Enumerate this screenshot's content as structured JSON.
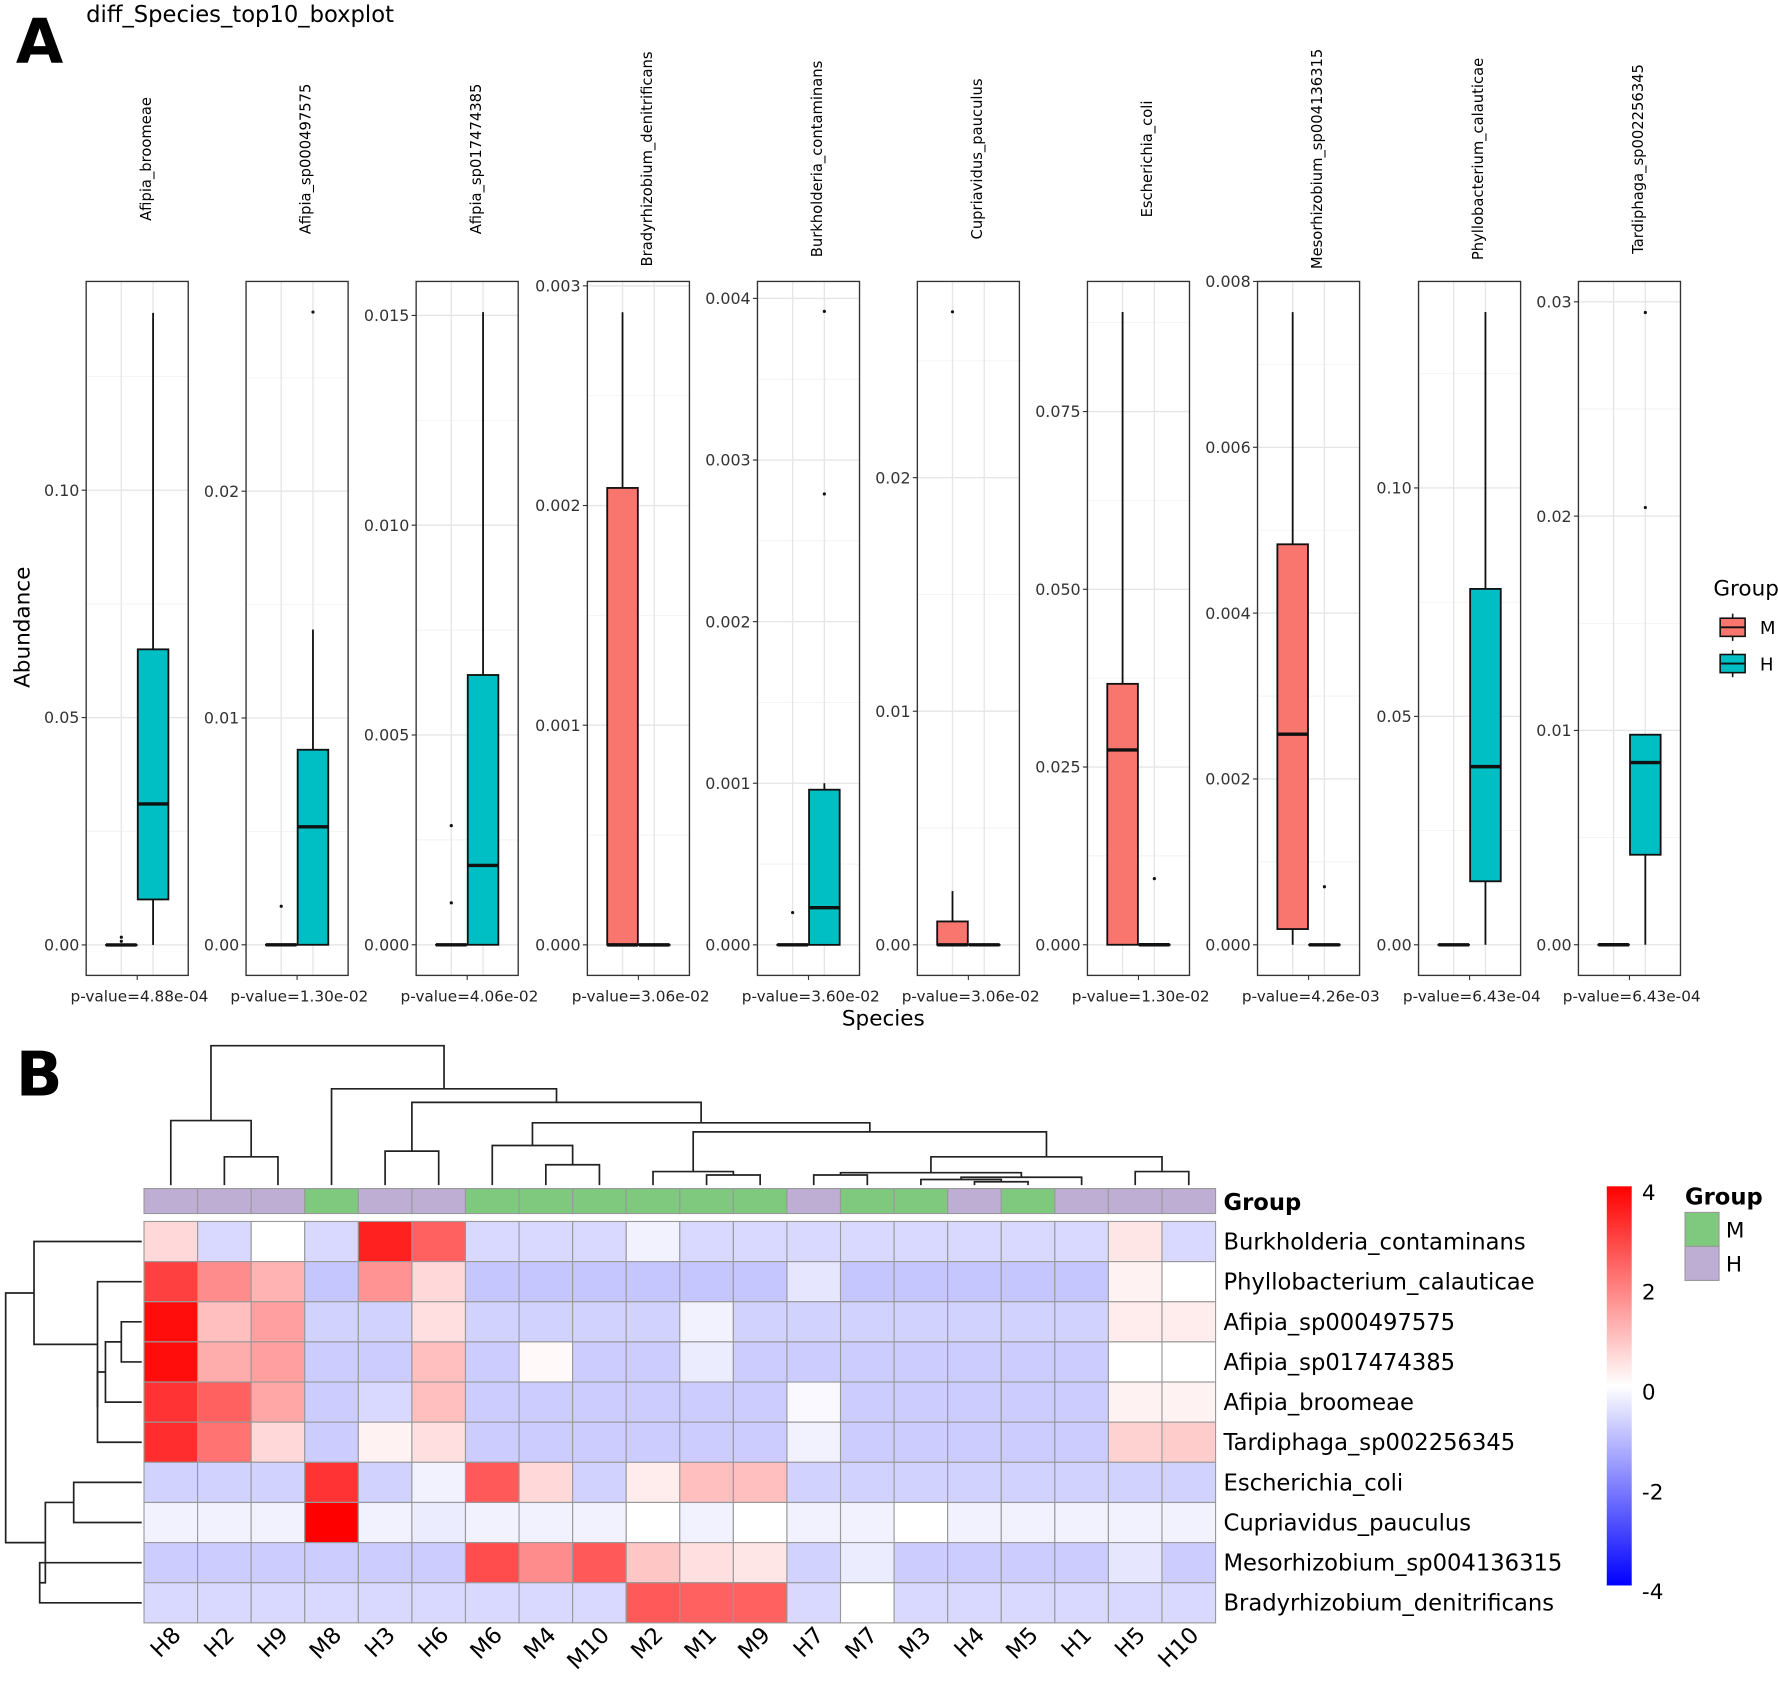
{
  "chart_data": [
    {
      "type": "box",
      "panel_letter": "A",
      "title": "diff_Species_top10_boxplot",
      "xlabel": "Species",
      "ylabel": "Abundance",
      "legend": {
        "title": "Group",
        "position": "right",
        "entries": [
          {
            "name": "M",
            "color": "#F8766D"
          },
          {
            "name": "H",
            "color": "#00BFC4"
          }
        ]
      },
      "panels": [
        {
          "species": "Afipia_broomeae",
          "pvalue": "p-value=4.88e-04",
          "ylim": [
            -0.0067,
            0.1459
          ],
          "ticks": [
            0,
            0.05,
            0.1
          ],
          "tick_labels": [
            "0.00",
            "0.05",
            "0.10"
          ],
          "M": {
            "lo": 0,
            "q1": 0,
            "med": 0,
            "q3": 0,
            "hi": 0,
            "out": [
              0.0008,
              0.0017
            ]
          },
          "H": {
            "lo": 0,
            "q1": 0.01,
            "med": 0.031,
            "q3": 0.065,
            "hi": 0.139,
            "out": []
          }
        },
        {
          "species": "Afipia_sp000497575",
          "pvalue": "p-value=1.30e-02",
          "ylim": [
            -0.00135,
            0.02925
          ],
          "ticks": [
            0,
            0.01,
            0.02
          ],
          "tick_labels": [
            "0.00",
            "0.01",
            "0.02"
          ],
          "M": {
            "lo": 0,
            "q1": 0,
            "med": 0,
            "q3": 0,
            "hi": 0,
            "out": [
              0.0017
            ]
          },
          "H": {
            "lo": 0,
            "q1": 0,
            "med": 0.0052,
            "q3": 0.0086,
            "hi": 0.0139,
            "out": [
              0.0279
            ]
          }
        },
        {
          "species": "Afipia_sp017474385",
          "pvalue": "p-value=4.06e-02",
          "ylim": [
            -0.00073,
            0.01581
          ],
          "ticks": [
            0,
            0.005,
            0.01,
            0.015
          ],
          "tick_labels": [
            "0.000",
            "0.005",
            "0.010",
            "0.015"
          ],
          "M": {
            "lo": 0,
            "q1": 0,
            "med": 0,
            "q3": 0,
            "hi": 0,
            "out": [
              0.001,
              0.00284
            ]
          },
          "H": {
            "lo": 0,
            "q1": 0,
            "med": 0.00189,
            "q3": 0.00643,
            "hi": 0.01508,
            "out": []
          }
        },
        {
          "species": "Bradyrhizobium_denitrificans",
          "pvalue": "p-value=3.06e-02",
          "ylim": [
            -0.000139,
            0.00302
          ],
          "ticks": [
            0,
            0.001,
            0.002,
            0.003
          ],
          "tick_labels": [
            "0.000",
            "0.001",
            "0.002",
            "0.003"
          ],
          "M": {
            "lo": 0,
            "q1": 0,
            "med": 0,
            "q3": 0.00208,
            "hi": 0.00288,
            "out": []
          },
          "H": {
            "lo": 0,
            "q1": 0,
            "med": 0,
            "q3": 0,
            "hi": 0,
            "out": []
          }
        },
        {
          "species": "Burkholderia_contaminans",
          "pvalue": "p-value=3.60e-02",
          "ylim": [
            -0.000189,
            0.004105
          ],
          "ticks": [
            0,
            0.001,
            0.002,
            0.003,
            0.004
          ],
          "tick_labels": [
            "0.000",
            "0.001",
            "0.002",
            "0.003",
            "0.004"
          ],
          "M": {
            "lo": 0,
            "q1": 0,
            "med": 0,
            "q3": 0,
            "hi": 0,
            "out": [
              0.0002
            ]
          },
          "H": {
            "lo": 0,
            "q1": 0,
            "med": 0.00023,
            "q3": 0.00096,
            "hi": 0.001,
            "out": [
              0.00279,
              0.00392
            ]
          }
        },
        {
          "species": "Cupriavidus_pauculus",
          "pvalue": "p-value=3.06e-02",
          "ylim": [
            -0.00131,
            0.0284
          ],
          "ticks": [
            0,
            0.01,
            0.02
          ],
          "tick_labels": [
            "0.00",
            "0.01",
            "0.02"
          ],
          "M": {
            "lo": 0,
            "q1": 0,
            "med": 0,
            "q3": 0.001,
            "hi": 0.0023,
            "out": [
              0.0271
            ]
          },
          "H": {
            "lo": 0,
            "q1": 0,
            "med": 0,
            "q3": 0,
            "hi": 0,
            "out": []
          }
        },
        {
          "species": "Escherichia_coli",
          "pvalue": "p-value=1.30e-02",
          "ylim": [
            -0.00431,
            0.0933
          ],
          "ticks": [
            0,
            0.025,
            0.05,
            0.075
          ],
          "tick_labels": [
            "0.000",
            "0.025",
            "0.050",
            "0.075"
          ],
          "M": {
            "lo": 0,
            "q1": 0,
            "med": 0.0274,
            "q3": 0.0367,
            "hi": 0.089,
            "out": []
          },
          "H": {
            "lo": 0,
            "q1": 0,
            "med": 0,
            "q3": 0,
            "hi": 0,
            "out": [
              0.0093
            ]
          }
        },
        {
          "species": "Mesorhizobium_sp004136315",
          "pvalue": "p-value=4.26e-03",
          "ylim": [
            -0.000369,
            0.008
          ],
          "ticks": [
            0,
            0.002,
            0.004,
            0.006,
            0.008
          ],
          "tick_labels": [
            "0.000",
            "0.002",
            "0.004",
            "0.006",
            "0.008"
          ],
          "M": {
            "lo": 0,
            "q1": 0.00019,
            "med": 0.00254,
            "q3": 0.00483,
            "hi": 0.00763,
            "out": []
          },
          "H": {
            "lo": 0,
            "q1": 0,
            "med": 0,
            "q3": 0,
            "hi": 0,
            "out": [
              0.0007
            ]
          }
        },
        {
          "species": "Phyllobacterium_calauticae",
          "pvalue": "p-value=6.43e-04",
          "ylim": [
            -0.0067,
            0.1452
          ],
          "ticks": [
            0,
            0.05,
            0.1
          ],
          "tick_labels": [
            "0.00",
            "0.05",
            "0.10"
          ],
          "M": {
            "lo": 0,
            "q1": 0,
            "med": 0,
            "q3": 0,
            "hi": 0,
            "out": []
          },
          "H": {
            "lo": 0,
            "q1": 0.0139,
            "med": 0.039,
            "q3": 0.0779,
            "hi": 0.1385,
            "out": []
          }
        },
        {
          "species": "Tardiphaga_sp002256345",
          "pvalue": "p-value=6.43e-04",
          "ylim": [
            -0.00143,
            0.03095
          ],
          "ticks": [
            0,
            0.01,
            0.02,
            0.03
          ],
          "tick_labels": [
            "0.00",
            "0.01",
            "0.02",
            "0.03"
          ],
          "M": {
            "lo": 0,
            "q1": 0,
            "med": 0,
            "q3": 0,
            "hi": 0,
            "out": []
          },
          "H": {
            "lo": 0,
            "q1": 0.0042,
            "med": 0.0085,
            "q3": 0.0098,
            "hi": 0.0098,
            "out": [
              0.0204,
              0.0295
            ]
          }
        }
      ]
    },
    {
      "type": "heatmap",
      "panel_letter": "B",
      "columns": [
        "H8",
        "H2",
        "H9",
        "M8",
        "H3",
        "H6",
        "M6",
        "M4",
        "M10",
        "M2",
        "M1",
        "M9",
        "H7",
        "M7",
        "M3",
        "H4",
        "M5",
        "H1",
        "H5",
        "H10"
      ],
      "column_groups": [
        "H",
        "H",
        "H",
        "M",
        "H",
        "H",
        "M",
        "M",
        "M",
        "M",
        "M",
        "M",
        "H",
        "M",
        "M",
        "H",
        "M",
        "H",
        "H",
        "H"
      ],
      "group_label": "Group",
      "group_colors": {
        "M": "#7FC97F",
        "H": "#BEAED4"
      },
      "rows": [
        "Burkholderia_contaminans",
        "Phyllobacterium_calauticae",
        "Afipia_sp000497575",
        "Afipia_sp017474385",
        "Afipia_broomeae",
        "Tardiphaga_sp002256345",
        "Escherichia_coli",
        "Cupriavidus_pauculus",
        "Mesorhizobium_sp004136315",
        "Bradyrhizobium_denitrificans"
      ],
      "values": [
        [
          0.6,
          -0.6,
          0,
          -0.6,
          3.5,
          2.5,
          -0.6,
          -0.6,
          -0.6,
          -0.2,
          -0.6,
          -0.6,
          -0.6,
          -0.6,
          -0.6,
          -0.6,
          -0.6,
          -0.6,
          0.4,
          -0.6
        ],
        [
          3.0,
          1.8,
          1.2,
          -0.9,
          1.7,
          0.6,
          -0.9,
          -0.9,
          -0.9,
          -0.9,
          -0.9,
          -0.9,
          -0.4,
          -0.9,
          -0.9,
          -0.9,
          -0.9,
          -0.9,
          0.2,
          0
        ],
        [
          3.8,
          1.0,
          1.5,
          -0.7,
          -0.7,
          0.5,
          -0.7,
          -0.7,
          -0.7,
          -0.7,
          -0.2,
          -0.7,
          -0.7,
          -0.7,
          -0.7,
          -0.7,
          -0.7,
          -0.7,
          0.3,
          0.3
        ],
        [
          3.8,
          1.3,
          1.5,
          -0.8,
          -0.8,
          1.0,
          -0.8,
          0.1,
          -0.8,
          -0.8,
          -0.3,
          -0.8,
          -0.8,
          -0.8,
          -0.8,
          -0.8,
          -0.8,
          -0.8,
          0,
          0
        ],
        [
          3.2,
          2.5,
          1.4,
          -0.8,
          -0.6,
          1.0,
          -0.8,
          -0.8,
          -0.8,
          -0.8,
          -0.8,
          -0.8,
          -0.1,
          -0.8,
          -0.8,
          -0.8,
          -0.8,
          -0.8,
          0.2,
          0.2
        ],
        [
          3.3,
          2.2,
          0.6,
          -0.8,
          0.2,
          0.5,
          -0.8,
          -0.8,
          -0.8,
          -0.8,
          -0.8,
          -0.8,
          -0.2,
          -0.8,
          -0.8,
          -0.8,
          -0.8,
          -0.8,
          0.7,
          0.8
        ],
        [
          -0.7,
          -0.7,
          -0.7,
          3.2,
          -0.7,
          -0.2,
          2.6,
          0.6,
          -0.7,
          0.3,
          1.0,
          1.0,
          -0.7,
          -0.7,
          -0.7,
          -0.7,
          -0.7,
          -0.7,
          -0.7,
          -0.7
        ],
        [
          -0.2,
          -0.2,
          -0.2,
          4.0,
          -0.2,
          -0.3,
          -0.2,
          -0.2,
          -0.2,
          0,
          -0.2,
          0,
          -0.2,
          -0.2,
          0,
          -0.2,
          -0.2,
          -0.2,
          -0.2,
          -0.2
        ],
        [
          -0.8,
          -0.8,
          -0.8,
          -0.8,
          -0.8,
          -0.8,
          2.8,
          1.8,
          2.6,
          0.9,
          0.5,
          0.4,
          -0.7,
          -0.3,
          -0.8,
          -0.8,
          -0.8,
          -0.8,
          -0.4,
          -0.8
        ],
        [
          -0.6,
          -0.6,
          -0.6,
          -0.6,
          -0.6,
          -0.6,
          -0.6,
          -0.6,
          -0.6,
          2.6,
          2.5,
          2.5,
          -0.6,
          0,
          -0.6,
          -0.6,
          -0.6,
          -0.6,
          -0.6,
          -0.6
        ]
      ],
      "color_scale": {
        "min": -4,
        "max": 4,
        "low": "#0000FF",
        "mid": "#FFFFFF",
        "high": "#FF0000",
        "tick_labels": [
          "4",
          "2",
          "0",
          "-2",
          "-4"
        ],
        "ticks": [
          4,
          2,
          0,
          -2,
          -4
        ]
      },
      "legend": {
        "title": "Group",
        "entries": [
          "M",
          "H"
        ]
      }
    }
  ]
}
